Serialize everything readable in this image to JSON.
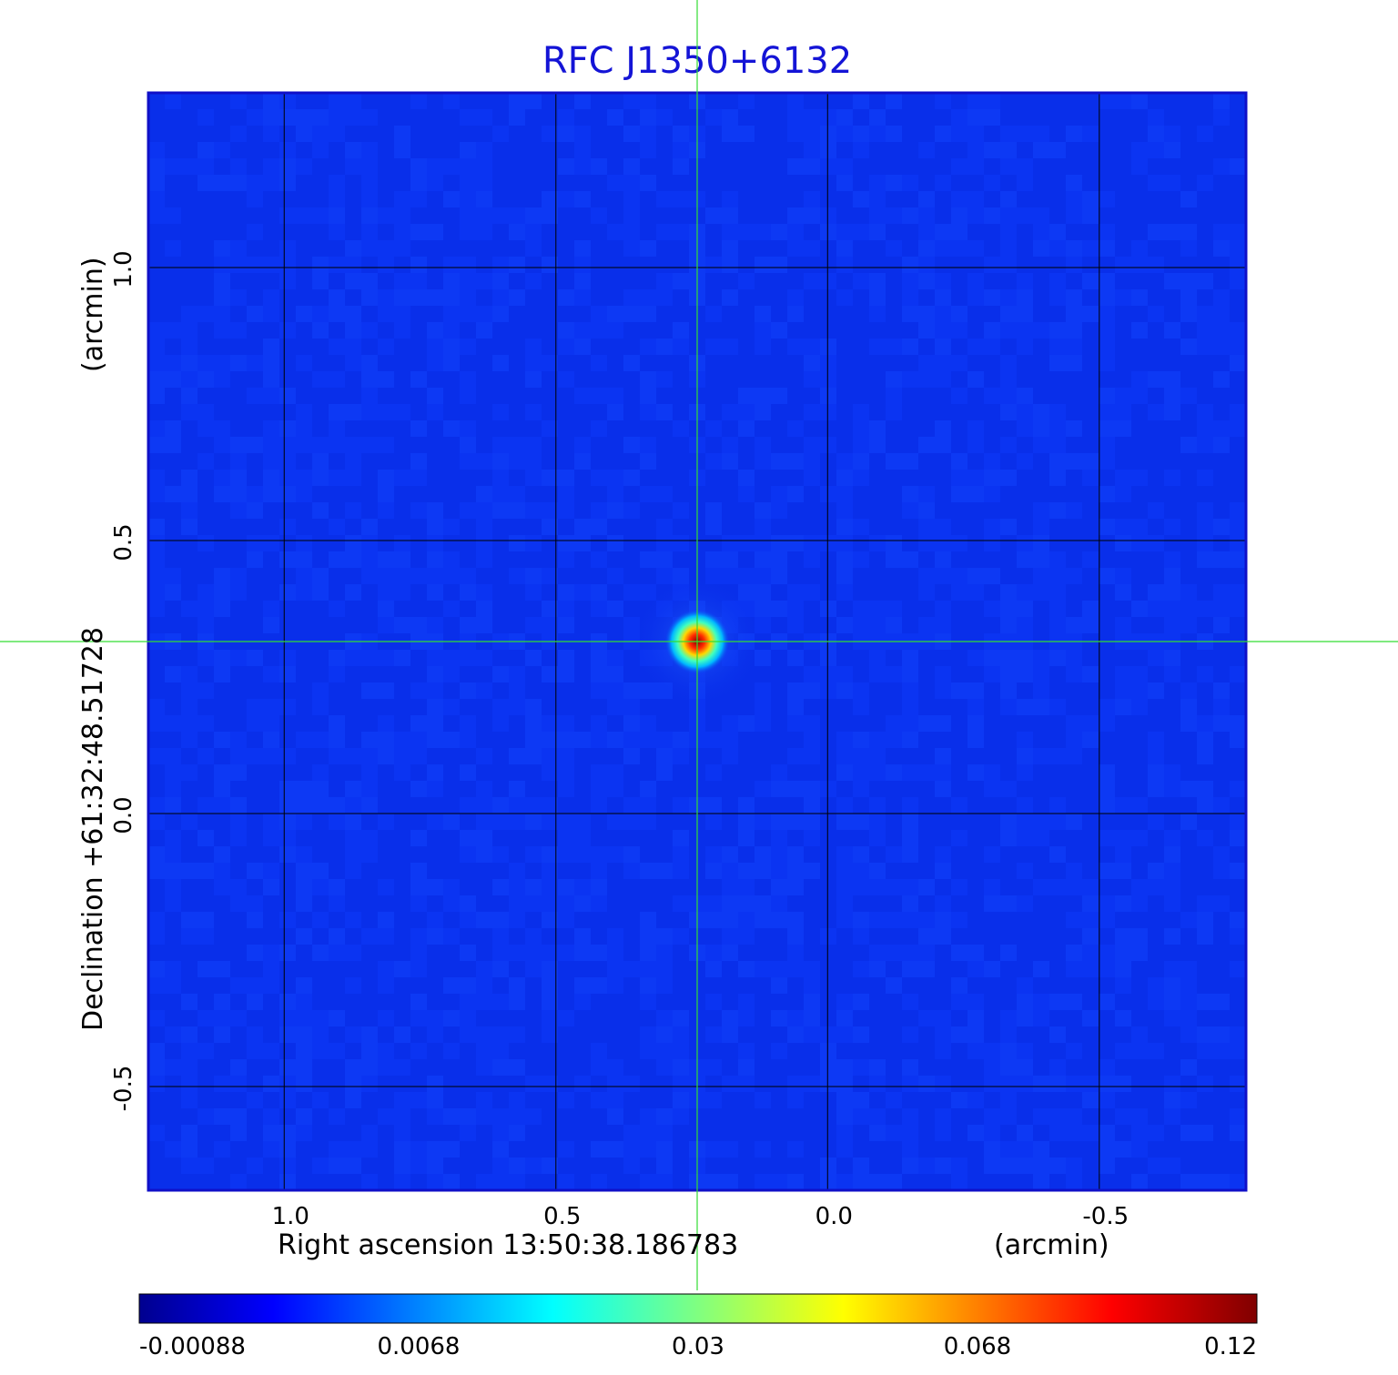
{
  "chart_data": {
    "type": "heatmap",
    "title": "RFC J1350+6132",
    "xlabel": "Right ascension  13:50:38.186783",
    "xlabel_unit": "(arcmin)",
    "ylabel": "Declination  +61:32:48.51728",
    "ylabel_unit": "(arcmin)",
    "xlim": [
      1.25,
      -0.77
    ],
    "ylim": [
      -0.69,
      1.32
    ],
    "x_ticks": [
      "1.0",
      "0.5",
      "0.0",
      "-0.5"
    ],
    "x_tick_values": [
      1.0,
      0.5,
      0.0,
      -0.5
    ],
    "y_ticks": [
      "1.0",
      "0.5",
      "0.0",
      "-0.5"
    ],
    "y_tick_values": [
      1.0,
      0.5,
      0.0,
      -0.5
    ],
    "grid": true,
    "crosshair": {
      "x": 0.24,
      "y": 0.315,
      "color": "#33dd33"
    },
    "source": {
      "x": 0.24,
      "y": 0.315,
      "peak": 0.12
    },
    "colorbar": {
      "labels": [
        "-0.00088",
        "0.0068",
        "0.03",
        "0.068",
        "0.12"
      ],
      "colormap": "jet",
      "background_color": "#0a32f0"
    }
  }
}
